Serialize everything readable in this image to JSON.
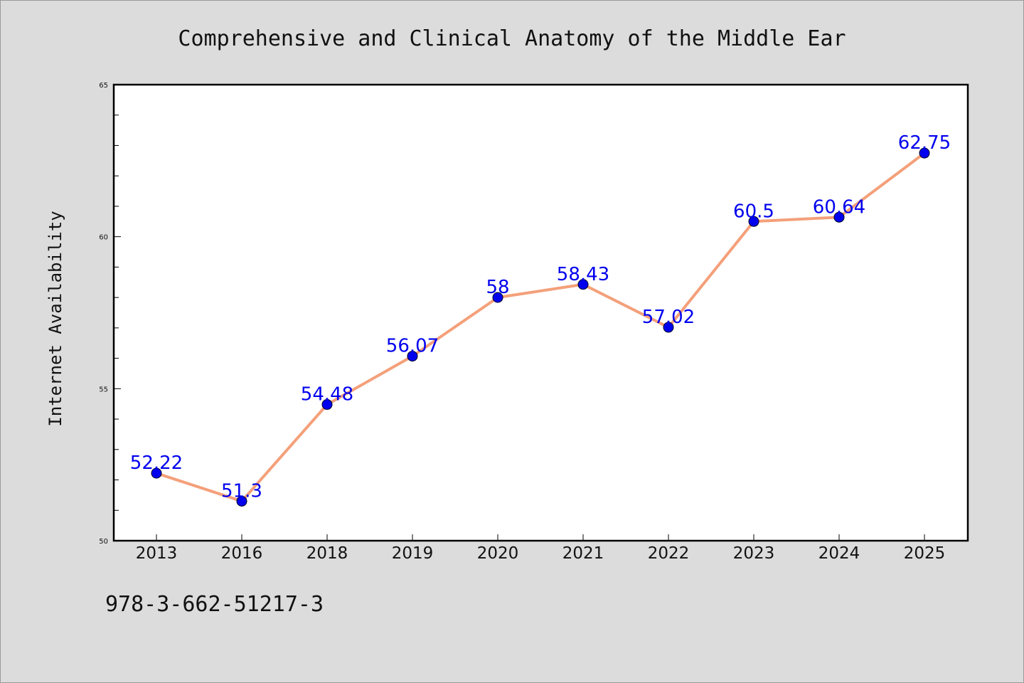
{
  "footnote": "978-3-662-51217-3",
  "chart_data": {
    "type": "line",
    "title": "Comprehensive and Clinical Anatomy of the Middle Ear",
    "xlabel": "",
    "ylabel": "Internet Availability",
    "categories": [
      "2013",
      "2016",
      "2018",
      "2019",
      "2020",
      "2021",
      "2022",
      "2023",
      "2024",
      "2025"
    ],
    "values": [
      52.22,
      51.3,
      54.48,
      56.07,
      58,
      58.43,
      57.02,
      60.5,
      60.64,
      62.75
    ],
    "data_labels": [
      "52.22",
      "51.3",
      "54.48",
      "56.07",
      "58",
      "58.43",
      "57.02",
      "60.5",
      "60.64",
      "62.75"
    ],
    "ylim": [
      50,
      65
    ],
    "yticks": [
      50,
      55,
      60,
      65
    ],
    "grid": false,
    "line_color": "#f4a07a",
    "marker_color": "#0000ee",
    "label_color": "#0000ee",
    "background": "#dcdcdc",
    "plot_background": "#ffffff"
  }
}
